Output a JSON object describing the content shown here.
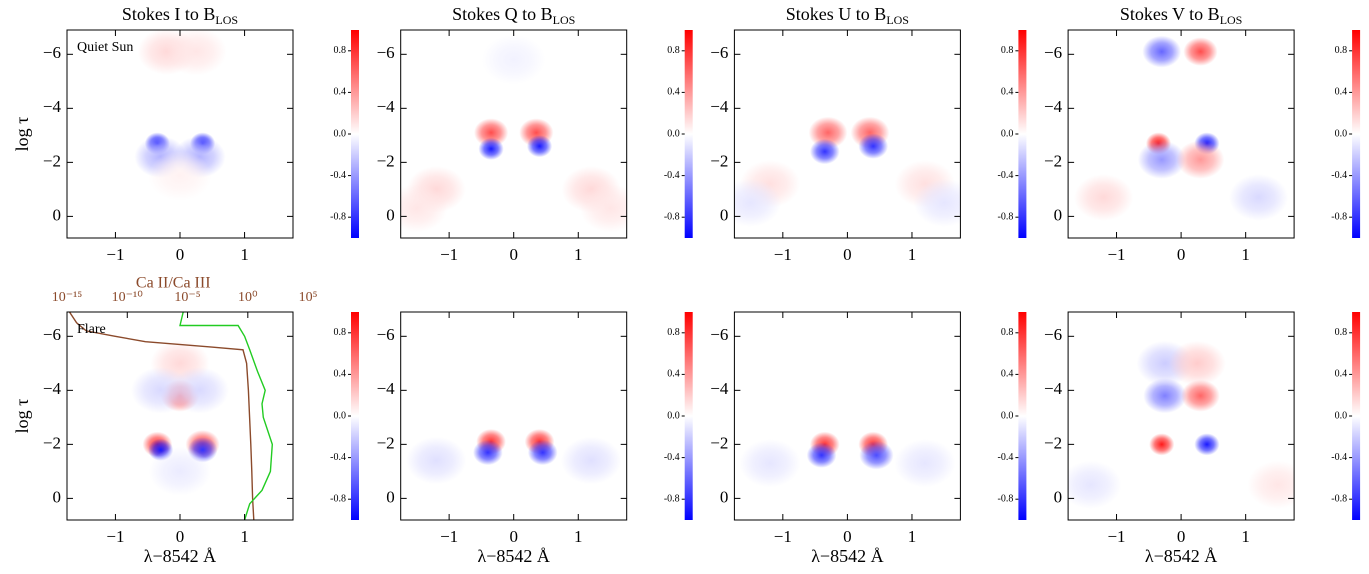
{
  "chart_data": [
    {
      "type": "heatmap",
      "title": "Stokes I to B",
      "title_sub": "LOS",
      "ylabel": "log τ",
      "annotation": "Quiet Sun",
      "xlim": [
        -1.75,
        1.75
      ],
      "xticks": [
        {
          "value": -1,
          "label": "−1"
        },
        0,
        1
      ],
      "ylim": [
        0.8,
        -6.9
      ],
      "yticks": [
        0,
        {
          "value": -2,
          "label": "−2"
        },
        {
          "value": -4,
          "label": "−4"
        },
        {
          "value": -6,
          "label": "−6"
        }
      ],
      "clim": [
        -1,
        1
      ],
      "cticks": [
        0.8,
        0.4,
        {
          "value": 0,
          "label": "0.0"
        },
        -0.4,
        -0.8
      ],
      "points": {
        "x": [
          -0.35,
          0.35,
          -0.3,
          0.3,
          -0.2,
          0.25,
          0
        ],
        "y": [
          -2.7,
          -2.7,
          -2.2,
          -2.2,
          -6.1,
          -6.1,
          -1.5
        ],
        "values": [
          -0.9,
          -0.9,
          -0.3,
          -0.3,
          0.15,
          0.1,
          0.05
        ]
      }
    },
    {
      "type": "heatmap",
      "title": "Stokes Q to B",
      "title_sub": "LOS",
      "xlim": [
        -1.75,
        1.75
      ],
      "xticks": [
        {
          "value": -1,
          "label": "−1"
        },
        0,
        1
      ],
      "ylim": [
        0.8,
        -6.9
      ],
      "yticks": [
        0,
        {
          "value": -2,
          "label": "−2"
        },
        {
          "value": -4,
          "label": "−4"
        },
        {
          "value": -6,
          "label": "−6"
        }
      ],
      "clim": [
        -1,
        1
      ],
      "cticks": [
        0.8,
        0.4,
        {
          "value": 0,
          "label": "0.0"
        },
        -0.4,
        -0.8
      ],
      "points": {
        "x": [
          -0.35,
          0.35,
          -0.35,
          0.4,
          0,
          -1.2,
          1.2,
          -1.5,
          1.5
        ],
        "y": [
          -3.1,
          -3.1,
          -2.5,
          -2.6,
          -5.8,
          -1,
          -1,
          -0.3,
          -0.3
        ],
        "values": [
          0.7,
          0.7,
          -0.9,
          -0.9,
          -0.05,
          0.15,
          0.15,
          0.1,
          0.1
        ]
      }
    },
    {
      "type": "heatmap",
      "title": "Stokes U to B",
      "title_sub": "LOS",
      "xlim": [
        -1.75,
        1.75
      ],
      "xticks": [
        {
          "value": -1,
          "label": "−1"
        },
        0,
        1
      ],
      "ylim": [
        0.8,
        -6.9
      ],
      "yticks": [
        0,
        {
          "value": -2,
          "label": "−2"
        },
        {
          "value": -4,
          "label": "−4"
        },
        {
          "value": -6,
          "label": "−6"
        }
      ],
      "clim": [
        -1,
        1
      ],
      "cticks": [
        0.8,
        0.4,
        {
          "value": 0,
          "label": "0.0"
        },
        -0.4,
        -0.8
      ],
      "points": {
        "x": [
          -0.3,
          0.35,
          -0.35,
          0.4,
          -1.2,
          1.2,
          -1.5,
          1.5
        ],
        "y": [
          -3.1,
          -3.1,
          -2.4,
          -2.6,
          -1.2,
          -1.2,
          -0.5,
          -0.5
        ],
        "values": [
          0.6,
          0.6,
          -0.8,
          -0.8,
          0.12,
          0.12,
          -0.1,
          -0.1
        ]
      }
    },
    {
      "type": "heatmap",
      "title": "Stokes V to B",
      "title_sub": "LOS",
      "xlim": [
        -1.75,
        1.75
      ],
      "xticks": [
        {
          "value": -1,
          "label": "−1"
        },
        0,
        1
      ],
      "ylim": [
        0.8,
        -6.9
      ],
      "yticks": [
        0,
        {
          "value": -2,
          "label": "−2"
        },
        {
          "value": -4,
          "label": "−4"
        },
        {
          "value": -6,
          "label": "−6"
        }
      ],
      "clim": [
        -1,
        1
      ],
      "cticks": [
        0.8,
        0.4,
        {
          "value": 0,
          "label": "0.0"
        },
        -0.4,
        -0.8
      ],
      "points": {
        "x": [
          -0.3,
          0.3,
          -0.35,
          0.4,
          -0.3,
          0.3,
          -1.2,
          1.2
        ],
        "y": [
          -6.1,
          -6.1,
          -2.7,
          -2.7,
          -2.1,
          -2.1,
          -0.7,
          -0.7
        ],
        "values": [
          -0.6,
          0.7,
          0.9,
          -0.9,
          -0.4,
          0.4,
          0.15,
          -0.15
        ]
      }
    },
    {
      "type": "heatmap",
      "ylabel": "log τ",
      "xlabel": "λ−8542 Å",
      "annotation": "Flare",
      "xlim": [
        -1.75,
        1.75
      ],
      "xticks": [
        {
          "value": -1,
          "label": "−1"
        },
        0,
        1
      ],
      "ylim": [
        0.8,
        -6.9
      ],
      "yticks": [
        0,
        {
          "value": -2,
          "label": "−2"
        },
        {
          "value": -4,
          "label": "−4"
        },
        {
          "value": -6,
          "label": "−6"
        }
      ],
      "clim": [
        -1,
        1
      ],
      "cticks": [
        0.8,
        0.4,
        {
          "value": 0,
          "label": "0.0"
        },
        -0.4,
        -0.8
      ],
      "points": {
        "x": [
          0,
          0,
          -0.35,
          -0.3,
          0.35,
          0.35,
          -0.3,
          0.3,
          0
        ],
        "y": [
          -3.8,
          -5,
          -2,
          -1.8,
          -2,
          -1.8,
          -4,
          -4,
          -1
        ],
        "values": [
          0.6,
          0.15,
          0.8,
          -0.9,
          0.7,
          -0.8,
          -0.15,
          -0.15,
          -0.08
        ]
      },
      "x2label": "Ca II/Ca III",
      "x2log": true,
      "x2lim": [
        1e-15,
        5600
      ],
      "x2ticks": [
        {
          "value": 1e-15,
          "label": "10⁻¹⁵"
        },
        {
          "value": 1e-10,
          "label": "10⁻¹⁰"
        },
        {
          "value": 1e-05,
          "label": "10⁻⁵"
        },
        {
          "value": 1,
          "label": "10⁰"
        },
        {
          "value": 100000,
          "label": "10⁵"
        }
      ],
      "series": [
        {
          "color": "#8b4a2b",
          "axis": "x2",
          "y": [
            -6.9,
            -6.5,
            -6.2,
            -6.0,
            -5.8,
            -5.6,
            -5.5,
            -5.0,
            -4.0,
            -3.0,
            -2.0,
            -1.0,
            0,
            0.8
          ],
          "values": [
            1.6e-15,
            6.3e-15,
            4e-14,
            1e-11,
            3.2e-09,
            0.001,
            0.4,
            0.79,
            1.12,
            1.41,
            1.78,
            2.14,
            2.51,
            3.16
          ]
        },
        {
          "color": "#22cc22",
          "axis": "x",
          "y": [
            -6.9,
            -6.4,
            -6.4,
            -6.0,
            -5.5,
            -4.7,
            -4.0,
            -3.5,
            -3.0,
            -2.0,
            -1.0,
            -0.3,
            0.2,
            0.8
          ],
          "values": [
            0.05,
            0.0,
            0.9,
            1.0,
            1.08,
            1.2,
            1.32,
            1.27,
            1.29,
            1.43,
            1.4,
            1.27,
            1.08,
            1.0
          ]
        }
      ]
    },
    {
      "type": "heatmap",
      "xlabel": "λ−8542 Å",
      "xlim": [
        -1.75,
        1.75
      ],
      "xticks": [
        {
          "value": -1,
          "label": "−1"
        },
        0,
        1
      ],
      "ylim": [
        0.8,
        -6.9
      ],
      "yticks": [
        0,
        {
          "value": -2,
          "label": "−2"
        },
        {
          "value": -4,
          "label": "−4"
        },
        {
          "value": -6,
          "label": "−6"
        }
      ],
      "clim": [
        -1,
        1
      ],
      "cticks": [
        0.8,
        0.4,
        {
          "value": 0,
          "label": "0.0"
        },
        -0.4,
        -0.8
      ],
      "points": {
        "x": [
          -0.35,
          0.4,
          -0.4,
          0.45,
          -1.2,
          1.2
        ],
        "y": [
          -2.1,
          -2.1,
          -1.7,
          -1.7,
          -1.4,
          -1.4
        ],
        "values": [
          0.8,
          0.8,
          -0.8,
          -0.8,
          -0.12,
          -0.12
        ]
      }
    },
    {
      "type": "heatmap",
      "xlabel": "λ−8542 Å",
      "xlim": [
        -1.75,
        1.75
      ],
      "xticks": [
        {
          "value": -1,
          "label": "−1"
        },
        0,
        1
      ],
      "ylim": [
        0.8,
        -6.9
      ],
      "yticks": [
        0,
        {
          "value": -2,
          "label": "−2"
        },
        {
          "value": -4,
          "label": "−4"
        },
        {
          "value": -6,
          "label": "−6"
        }
      ],
      "clim": [
        -1,
        1
      ],
      "cticks": [
        0.8,
        0.4,
        {
          "value": 0,
          "label": "0.0"
        },
        -0.4,
        -0.8
      ],
      "points": {
        "x": [
          -0.35,
          0.4,
          -0.4,
          0.45,
          -1.2,
          1.2
        ],
        "y": [
          -2.0,
          -2.0,
          -1.6,
          -1.6,
          -1.3,
          -1.3
        ],
        "values": [
          0.8,
          0.8,
          -0.8,
          -0.7,
          -0.1,
          -0.1
        ]
      }
    },
    {
      "type": "heatmap",
      "xlabel": "λ−8542 Å",
      "xlim": [
        -1.75,
        1.75
      ],
      "xticks": [
        {
          "value": -1,
          "label": "−1"
        },
        0,
        1
      ],
      "ylim": [
        0.8,
        -6.9
      ],
      "yticks": [
        0,
        {
          "value": -2,
          "label": "−2"
        },
        {
          "value": -4,
          "label": "−4"
        },
        {
          "value": -6,
          "label": "−6"
        }
      ],
      "clim": [
        -1,
        1
      ],
      "cticks": [
        0.8,
        0.4,
        {
          "value": 0,
          "label": "0.0"
        },
        -0.4,
        -0.8
      ],
      "points": {
        "x": [
          -0.25,
          0.3,
          -0.3,
          0.4,
          -0.25,
          0.25,
          1.5,
          -1.4
        ],
        "y": [
          -3.8,
          -3.8,
          -2.0,
          -2.0,
          -5,
          -5,
          -0.5,
          -0.5
        ],
        "values": [
          -0.5,
          0.6,
          0.9,
          -0.9,
          -0.2,
          0.2,
          0.1,
          -0.1
        ]
      }
    }
  ]
}
